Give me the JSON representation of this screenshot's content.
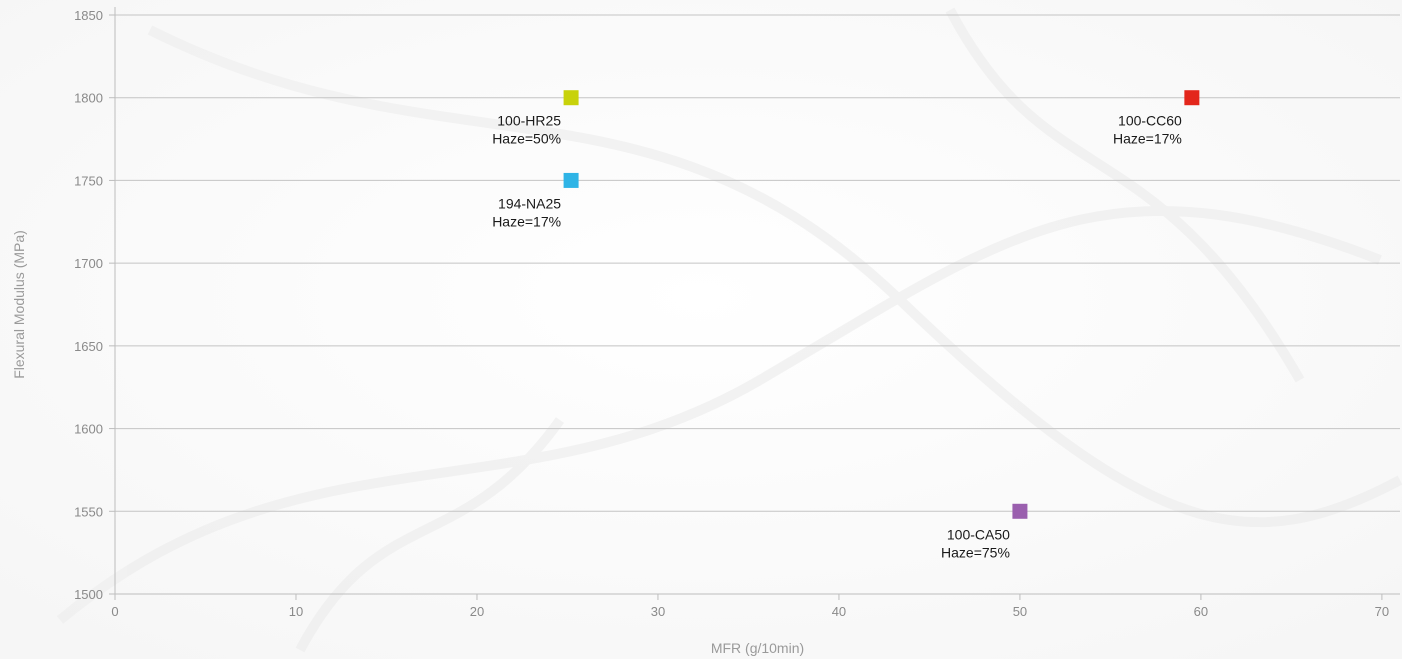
{
  "chart_data": {
    "type": "scatter",
    "xlabel": "MFR (g/10min)",
    "ylabel": "Flexural Modulus (MPa)",
    "xlim": [
      0,
      71
    ],
    "ylim": [
      1500,
      1850
    ],
    "x_ticks": [
      0,
      10,
      20,
      30,
      40,
      50,
      60,
      70
    ],
    "y_ticks": [
      1500,
      1550,
      1600,
      1650,
      1700,
      1750,
      1800,
      1850
    ],
    "grid": "horizontal",
    "marker": "square",
    "points": [
      {
        "id": "p-100-hr25",
        "x": 25.2,
        "y": 1800,
        "label": "100-HR25",
        "sublabel": "Haze=50%",
        "color": "#c8d20a",
        "label_side": "left"
      },
      {
        "id": "p-194-na25",
        "x": 25.2,
        "y": 1750,
        "label": "194-NA25",
        "sublabel": "Haze=17%",
        "color": "#2fb4e6",
        "label_side": "left"
      },
      {
        "id": "p-100-cc60",
        "x": 59.5,
        "y": 1800,
        "label": "100-CC60",
        "sublabel": "Haze=17%",
        "color": "#e3261b",
        "label_side": "left"
      },
      {
        "id": "p-100-ca50",
        "x": 50.0,
        "y": 1550,
        "label": "100-CA50",
        "sublabel": "Haze=75%",
        "color": "#9a5fae",
        "label_side": "left"
      }
    ]
  }
}
